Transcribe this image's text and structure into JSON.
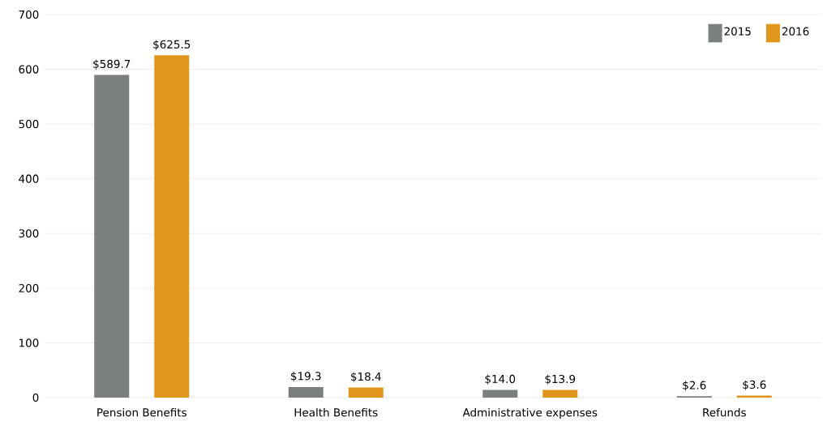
{
  "chart_data": {
    "type": "bar",
    "categories": [
      "Pension Benefits",
      "Health Benefits",
      "Administrative expenses",
      "Refunds"
    ],
    "series": [
      {
        "name": "2015",
        "color": "#7a7f80",
        "values": [
          589.7,
          19.3,
          14.0,
          2.6
        ],
        "value_labels": [
          "$589.7",
          "$19.3",
          "$14.0",
          "$2.6"
        ]
      },
      {
        "name": "2016",
        "color": "#e0961a",
        "values": [
          625.5,
          18.4,
          13.9,
          3.6
        ],
        "value_labels": [
          "$625.5",
          "$18.4",
          "$13.9",
          "$3.6"
        ]
      }
    ],
    "ylim": [
      0,
      700
    ],
    "yticks": [
      0,
      100,
      200,
      300,
      400,
      500,
      600,
      700
    ],
    "grid": "y",
    "legend": "top right"
  }
}
